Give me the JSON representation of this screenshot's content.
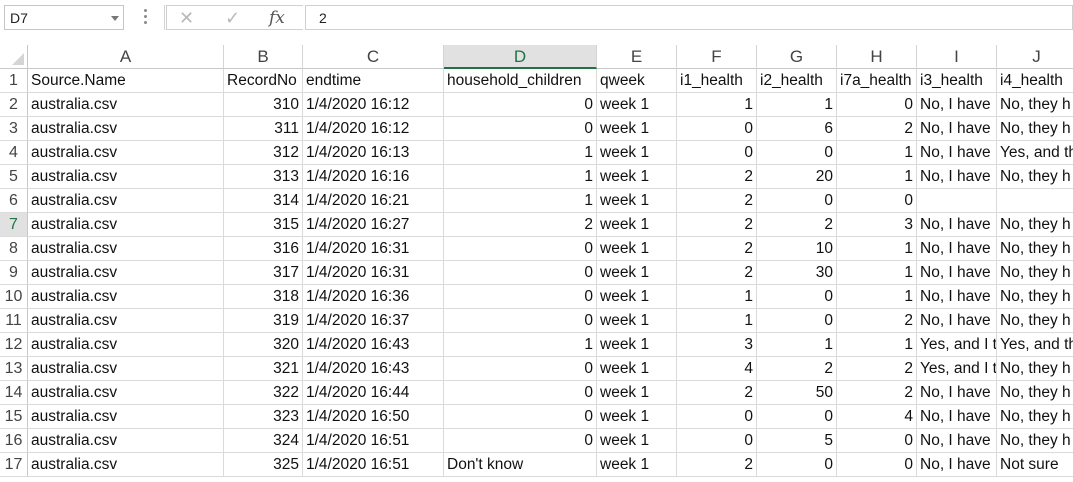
{
  "formula_bar": {
    "name_box": "D7",
    "formula_value": "2",
    "cancel_icon": "close-icon",
    "enter_icon": "check-icon",
    "function_icon": "fx-icon",
    "function_label": "fx"
  },
  "columns": [
    "A",
    "B",
    "C",
    "D",
    "E",
    "F",
    "G",
    "H",
    "I",
    "J"
  ],
  "active_cell": {
    "column": "D",
    "row": "7"
  },
  "rows": [
    {
      "num": "1",
      "cells": [
        "Source.Name",
        "RecordNo",
        "endtime",
        "household_children",
        "qweek",
        "i1_health",
        "i2_health",
        "i7a_health",
        "i3_health",
        "i4_health"
      ]
    },
    {
      "num": "2",
      "cells": [
        "australia.csv",
        "310",
        "1/4/2020 16:12",
        "0",
        "week 1",
        "1",
        "1",
        "0",
        "No, I have",
        "No, they h"
      ]
    },
    {
      "num": "3",
      "cells": [
        "australia.csv",
        "311",
        "1/4/2020 16:12",
        "0",
        "week 1",
        "0",
        "6",
        "2",
        "No, I have",
        "No, they h"
      ]
    },
    {
      "num": "4",
      "cells": [
        "australia.csv",
        "312",
        "1/4/2020 16:13",
        "1",
        "week 1",
        "0",
        "0",
        "1",
        "No, I have",
        "Yes, and th"
      ]
    },
    {
      "num": "5",
      "cells": [
        "australia.csv",
        "313",
        "1/4/2020 16:16",
        "1",
        "week 1",
        "2",
        "20",
        "1",
        "No, I have",
        "No, they h"
      ]
    },
    {
      "num": "6",
      "cells": [
        "australia.csv",
        "314",
        "1/4/2020 16:21",
        "1",
        "week 1",
        "2",
        "0",
        "0",
        "",
        ""
      ]
    },
    {
      "num": "7",
      "cells": [
        "australia.csv",
        "315",
        "1/4/2020 16:27",
        "2",
        "week 1",
        "2",
        "2",
        "3",
        "No, I have",
        "No, they h"
      ]
    },
    {
      "num": "8",
      "cells": [
        "australia.csv",
        "316",
        "1/4/2020 16:31",
        "0",
        "week 1",
        "2",
        "10",
        "1",
        "No, I have",
        "No, they h"
      ]
    },
    {
      "num": "9",
      "cells": [
        "australia.csv",
        "317",
        "1/4/2020 16:31",
        "0",
        "week 1",
        "2",
        "30",
        "1",
        "No, I have",
        "No, they h"
      ]
    },
    {
      "num": "10",
      "cells": [
        "australia.csv",
        "318",
        "1/4/2020 16:36",
        "0",
        "week 1",
        "1",
        "0",
        "1",
        "No, I have",
        "No, they h"
      ]
    },
    {
      "num": "11",
      "cells": [
        "australia.csv",
        "319",
        "1/4/2020 16:37",
        "0",
        "week 1",
        "1",
        "0",
        "2",
        "No, I have",
        "No, they h"
      ]
    },
    {
      "num": "12",
      "cells": [
        "australia.csv",
        "320",
        "1/4/2020 16:43",
        "1",
        "week 1",
        "3",
        "1",
        "1",
        "Yes, and I t",
        "Yes, and th"
      ]
    },
    {
      "num": "13",
      "cells": [
        "australia.csv",
        "321",
        "1/4/2020 16:43",
        "0",
        "week 1",
        "4",
        "2",
        "2",
        "Yes, and I t",
        "No, they h"
      ]
    },
    {
      "num": "14",
      "cells": [
        "australia.csv",
        "322",
        "1/4/2020 16:44",
        "0",
        "week 1",
        "2",
        "50",
        "2",
        "No, I have",
        "No, they h"
      ]
    },
    {
      "num": "15",
      "cells": [
        "australia.csv",
        "323",
        "1/4/2020 16:50",
        "0",
        "week 1",
        "0",
        "0",
        "4",
        "No, I have",
        "No, they h"
      ]
    },
    {
      "num": "16",
      "cells": [
        "australia.csv",
        "324",
        "1/4/2020 16:51",
        "0",
        "week 1",
        "0",
        "5",
        "0",
        "No, I have",
        "No, they h"
      ]
    },
    {
      "num": "17",
      "cells": [
        "australia.csv",
        "325",
        "1/4/2020 16:51",
        "Don't know",
        "week 1",
        "2",
        "0",
        "0",
        "No, I have",
        "Not sure"
      ]
    }
  ]
}
